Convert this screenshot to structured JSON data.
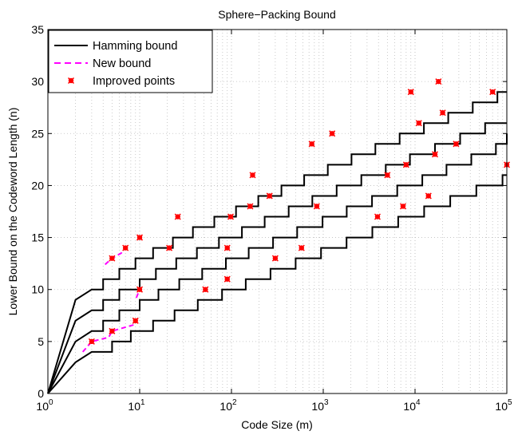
{
  "chart_data": {
    "type": "line",
    "title": "Sphere−Packing Bound",
    "xlabel": "Code Size (m)",
    "ylabel": "Lower Bound on the Codeword Length (n)",
    "xscale": "log",
    "xlim": [
      1,
      100000
    ],
    "ylim": [
      0,
      35
    ],
    "x_ticks": [
      {
        "base": "10",
        "exp": "0"
      },
      {
        "base": "10",
        "exp": "1"
      },
      {
        "base": "10",
        "exp": "2"
      },
      {
        "base": "10",
        "exp": "3"
      },
      {
        "base": "10",
        "exp": "4"
      },
      {
        "base": "10",
        "exp": "5"
      }
    ],
    "y_ticks": [
      "0",
      "5",
      "10",
      "15",
      "20",
      "25",
      "30",
      "35"
    ],
    "grid": true,
    "legend": {
      "position": "top-left",
      "entries": [
        "Hamming bound",
        "New bound",
        "Improved points"
      ]
    },
    "colors": {
      "hamming": "#000000",
      "new": "#ff00ff",
      "improved": "#ff0000"
    },
    "series": [
      {
        "name": "Hamming bound",
        "curves": [
          [
            [
              1,
              0
            ],
            [
              2,
              3
            ],
            [
              3,
              4
            ],
            [
              5,
              5
            ],
            [
              8,
              6
            ],
            [
              14,
              7
            ],
            [
              24,
              8
            ],
            [
              43,
              9
            ],
            [
              79,
              10
            ],
            [
              143,
              11
            ],
            [
              266,
              12
            ],
            [
              500,
              13
            ],
            [
              945,
              14
            ],
            [
              1795,
              15
            ],
            [
              3425,
              16
            ],
            [
              6554,
              17
            ],
            [
              12576,
              18
            ],
            [
              24181,
              19
            ],
            [
              46563,
              20
            ],
            [
              89781,
              21
            ],
            [
              100000,
              21
            ]
          ],
          [
            [
              1,
              0
            ],
            [
              2,
              5
            ],
            [
              3,
              6
            ],
            [
              4,
              7
            ],
            [
              6,
              8
            ],
            [
              10,
              9
            ],
            [
              16,
              10
            ],
            [
              27,
              11
            ],
            [
              48,
              12
            ],
            [
              87,
              13
            ],
            [
              154,
              14
            ],
            [
              284,
              15
            ],
            [
              520,
              16
            ],
            [
              982,
              17
            ],
            [
              1800,
              18
            ],
            [
              3400,
              19
            ],
            [
              6400,
              20
            ],
            [
              12000,
              21
            ],
            [
              22000,
              22
            ],
            [
              41000,
              23
            ],
            [
              76000,
              24
            ],
            [
              100000,
              25
            ]
          ],
          [
            [
              1,
              0
            ],
            [
              2,
              7
            ],
            [
              3,
              8
            ],
            [
              4,
              9
            ],
            [
              6,
              10
            ],
            [
              10,
              11
            ],
            [
              15,
              12
            ],
            [
              25,
              13
            ],
            [
              42,
              14
            ],
            [
              73,
              15
            ],
            [
              130,
              16
            ],
            [
              230,
              17
            ],
            [
              420,
              18
            ],
            [
              760,
              19
            ],
            [
              1400,
              20
            ],
            [
              2600,
              21
            ],
            [
              4800,
              22
            ],
            [
              8800,
              23
            ],
            [
              16500,
              24
            ],
            [
              31000,
              25
            ],
            [
              58000,
              26
            ],
            [
              100000,
              26
            ]
          ],
          [
            [
              1,
              0
            ],
            [
              2,
              9
            ],
            [
              3,
              10
            ],
            [
              4,
              11
            ],
            [
              6,
              12
            ],
            [
              9,
              13
            ],
            [
              14,
              14
            ],
            [
              23,
              15
            ],
            [
              38,
              16
            ],
            [
              65,
              17
            ],
            [
              112,
              18
            ],
            [
              196,
              19
            ],
            [
              350,
              20
            ],
            [
              620,
              21
            ],
            [
              1120,
              22
            ],
            [
              2030,
              23
            ],
            [
              3700,
              24
            ],
            [
              6800,
              25
            ],
            [
              12500,
              26
            ],
            [
              23000,
              27
            ],
            [
              42500,
              28
            ],
            [
              79000,
              29
            ],
            [
              100000,
              29
            ]
          ]
        ]
      },
      {
        "name": "New bound",
        "curves": [
          [
            [
              2.4,
              4
            ],
            [
              3,
              5
            ],
            [
              4.6,
              5.4
            ],
            [
              5,
              6
            ],
            [
              8.6,
              6.6
            ],
            [
              9,
              7
            ]
          ],
          [
            [
              9.2,
              9.2
            ],
            [
              10,
              10
            ]
          ],
          [
            [
              4.2,
              12.4
            ],
            [
              5,
              13
            ],
            [
              6.3,
              13.5
            ],
            [
              7,
              14
            ]
          ]
        ]
      },
      {
        "name": "Improved points",
        "points": [
          [
            3,
            5
          ],
          [
            5,
            6
          ],
          [
            9,
            7
          ],
          [
            10,
            10
          ],
          [
            5,
            13
          ],
          [
            7,
            14
          ],
          [
            10,
            15
          ],
          [
            26,
            17
          ],
          [
            52,
            10
          ],
          [
            90,
            11
          ],
          [
            300,
            13
          ],
          [
            580,
            14
          ],
          [
            21,
            14
          ],
          [
            90,
            14
          ],
          [
            160,
            18
          ],
          [
            260,
            19
          ],
          [
            850,
            18
          ],
          [
            98,
            17
          ],
          [
            170,
            21
          ],
          [
            750,
            24
          ],
          [
            1250,
            25
          ],
          [
            3900,
            17
          ],
          [
            7400,
            18
          ],
          [
            14000,
            19
          ],
          [
            5000,
            21
          ],
          [
            8000,
            22
          ],
          [
            16500,
            23
          ],
          [
            28000,
            24
          ],
          [
            11000,
            26
          ],
          [
            20000,
            27
          ],
          [
            9000,
            29
          ],
          [
            18000,
            30
          ],
          [
            70000,
            29
          ],
          [
            100000,
            22
          ]
        ]
      }
    ]
  }
}
